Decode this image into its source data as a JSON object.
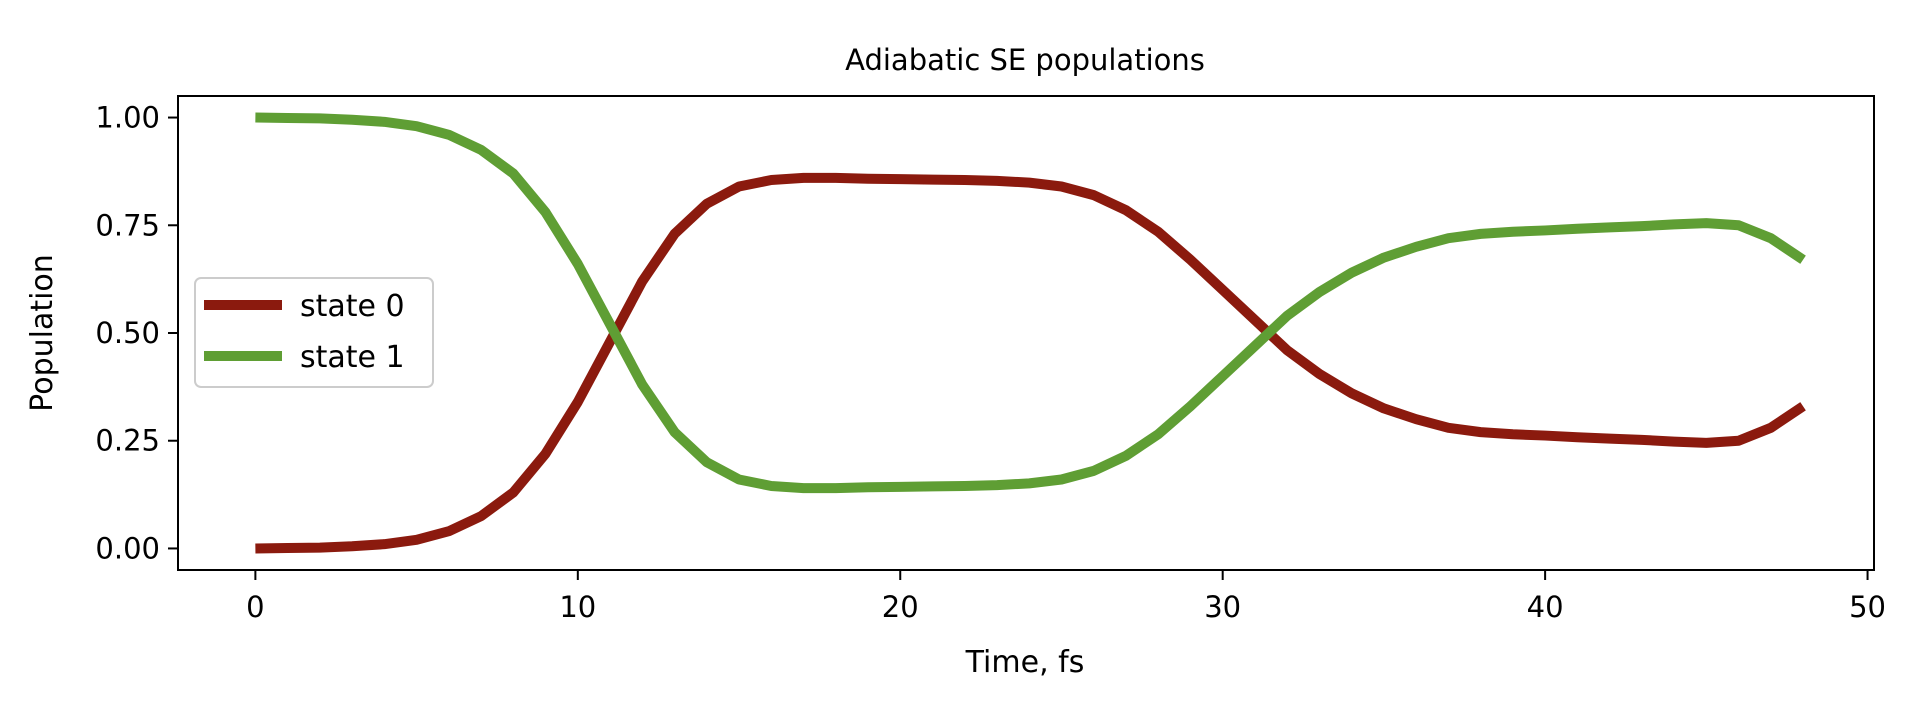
{
  "chart_data": {
    "type": "line",
    "title": "Adiabatic SE populations",
    "xlabel": "Time, fs",
    "ylabel": "Population",
    "xlim": [
      -2.4,
      50.2
    ],
    "ylim": [
      -0.05,
      1.05
    ],
    "xticks": [
      0,
      10,
      20,
      30,
      40,
      50
    ],
    "yticks": [
      0.0,
      0.25,
      0.5,
      0.75,
      1.0
    ],
    "xtick_labels": [
      "0",
      "10",
      "20",
      "30",
      "40",
      "50"
    ],
    "ytick_labels": [
      "0.00",
      "0.25",
      "0.50",
      "0.75",
      "1.00"
    ],
    "grid": false,
    "legend_position": "center-left",
    "x": [
      0,
      1,
      2,
      3,
      4,
      5,
      6,
      7,
      8,
      9,
      10,
      11,
      12,
      13,
      14,
      15,
      16,
      17,
      18,
      19,
      20,
      21,
      22,
      23,
      24,
      25,
      26,
      27,
      28,
      29,
      30,
      31,
      32,
      33,
      34,
      35,
      36,
      37,
      38,
      39,
      40,
      41,
      42,
      43,
      44,
      45,
      46,
      47,
      48
    ],
    "series": [
      {
        "name": "state 0",
        "color": "#8b1a0e",
        "values": [
          0.0,
          0.001,
          0.002,
          0.005,
          0.01,
          0.02,
          0.04,
          0.075,
          0.13,
          0.22,
          0.34,
          0.48,
          0.62,
          0.73,
          0.8,
          0.84,
          0.855,
          0.86,
          0.86,
          0.858,
          0.857,
          0.856,
          0.855,
          0.853,
          0.849,
          0.84,
          0.82,
          0.785,
          0.735,
          0.67,
          0.6,
          0.53,
          0.46,
          0.405,
          0.36,
          0.325,
          0.3,
          0.28,
          0.27,
          0.265,
          0.262,
          0.258,
          0.255,
          0.252,
          0.248,
          0.245,
          0.25,
          0.28,
          0.33
        ]
      },
      {
        "name": "state 1",
        "color": "#5f9e34",
        "values": [
          1.0,
          0.999,
          0.998,
          0.995,
          0.99,
          0.98,
          0.96,
          0.925,
          0.87,
          0.78,
          0.66,
          0.52,
          0.38,
          0.27,
          0.2,
          0.16,
          0.145,
          0.14,
          0.14,
          0.142,
          0.143,
          0.144,
          0.145,
          0.147,
          0.151,
          0.16,
          0.18,
          0.215,
          0.265,
          0.33,
          0.4,
          0.47,
          0.54,
          0.595,
          0.64,
          0.675,
          0.7,
          0.72,
          0.73,
          0.735,
          0.738,
          0.742,
          0.745,
          0.748,
          0.752,
          0.755,
          0.75,
          0.72,
          0.67
        ]
      }
    ]
  }
}
